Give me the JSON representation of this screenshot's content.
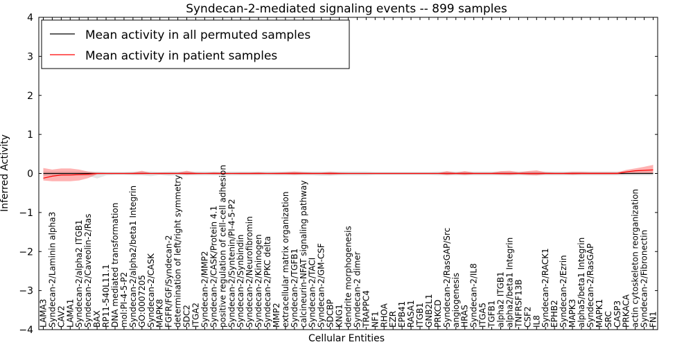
{
  "chart_data": {
    "type": "line",
    "title": "Syndecan-2-mediated signaling events -- 899 samples",
    "xlabel": "Cellular Entities",
    "ylabel": "Inferred Activity",
    "ylim": [
      -4,
      4
    ],
    "yticks": [
      "−4",
      "−3",
      "−2",
      "−1",
      "0",
      "1",
      "2",
      "3",
      "4"
    ],
    "ytick_values": [
      -4,
      -3,
      -2,
      -1,
      0,
      1,
      2,
      3,
      4
    ],
    "grid": false,
    "legend_position": "top-left",
    "categories": [
      "LAMA3",
      "Syndecan-2/Laminin alpha3",
      "CAV2",
      "LAMA1",
      "Syndecan-2/alpha2 ITGB1",
      "Syndecan-2/Caveolin-2/Ras",
      "BAX",
      "RP11-540L11.1",
      "DNA mediated transformation",
      "mol:PI-4-5-P2",
      "Syndecan-2/alpha2/beta1 Integrin",
      "GO:0007205",
      "Syndecan-2/CASK",
      "MAPK8",
      "FGFR/FGF/Syndecan-2",
      "determination of left/right symmetry",
      "SDC2",
      "ITGA2",
      "Syndecan-2/MMP2",
      "Syndecan-2/CASK/Protein 4.1",
      "positive regulation of cell-cell adhesion",
      "Syndecan-2/Syntenin/PI-4-5-P2",
      "Syndecan-2/Synbindin",
      "Syndecan-2/Neurofibromin",
      "Syndecan-2/Kininogen",
      "Syndecan-2/PKC delta",
      "MMP2",
      "extracellular matrix organization",
      "Syndecan-2/TGFB1",
      "calcineurin-NFAT signaling pathway",
      "Syndecan-2/TACI",
      "Syndecan-2/GM-CSF",
      "SDCBP",
      "KNG1",
      "dendrite morphogenesis",
      "Syndecan-2 dimer",
      "TRAPPC4",
      "NF1",
      "RHOA",
      "EZR",
      "EPB41",
      "RASA1",
      "ITGB1",
      "GNB2L1",
      "PRKCD",
      "Syndecan-2/RasGAP/Src",
      "angiogenesis",
      "HRAS",
      "Syndecan-2/IL8",
      "ITGA5",
      "TGFB1",
      "alpha2 ITGB1",
      "alpha2/beta1 Integrin",
      "TNFRSF13B",
      "CSF2",
      "IL8",
      "Syndecan-2/RACK1",
      "EPHB2",
      "Syndecan-2/Ezrin",
      "MAPK3",
      "alpha5/beta1 Integrin",
      "Syndecan-2/RasGAP",
      "MAPK1",
      "SRC",
      "CASP3",
      "PRKACA",
      "actin cytoskeleton reorganization",
      "Syndecan-2/Fibronectin",
      "FN1"
    ],
    "series": [
      {
        "name": "Mean activity in all permuted samples",
        "color": "#000000",
        "values": [
          0,
          0,
          0,
          0,
          0,
          0,
          0,
          0,
          0,
          0,
          0,
          0,
          0,
          0,
          0,
          0,
          0,
          0,
          0,
          0,
          0,
          0,
          0,
          0,
          0,
          0,
          0,
          0,
          0,
          0,
          0,
          0,
          0,
          0,
          0,
          0,
          0,
          0,
          0,
          0,
          0,
          0,
          0,
          0,
          0,
          0,
          0,
          0,
          0,
          0,
          0,
          0,
          0,
          0,
          0,
          0,
          0,
          0,
          0,
          0,
          0,
          0,
          0,
          0,
          0,
          0,
          0,
          0,
          0
        ],
        "band_lower": [
          -0.06,
          -0.05,
          -0.06,
          -0.05,
          -0.05,
          -0.06,
          -0.13,
          -0.05,
          -0.04,
          -0.04,
          -0.05,
          -0.05,
          -0.07,
          -0.04,
          -0.06,
          -0.05,
          -0.05,
          -0.05,
          -0.05,
          -0.05,
          -0.05,
          -0.05,
          -0.05,
          -0.05,
          -0.05,
          -0.05,
          -0.05,
          -0.05,
          -0.05,
          -0.05,
          -0.05,
          -0.06,
          -0.06,
          -0.05,
          -0.05,
          -0.05,
          -0.05,
          -0.04,
          -0.04,
          -0.04,
          -0.04,
          -0.04,
          -0.04,
          -0.04,
          -0.05,
          -0.05,
          -0.05,
          -0.05,
          -0.05,
          -0.05,
          -0.05,
          -0.05,
          -0.05,
          -0.05,
          -0.05,
          -0.05,
          -0.05,
          -0.05,
          -0.05,
          -0.05,
          -0.05,
          -0.05,
          -0.05,
          -0.05,
          -0.05,
          -0.05,
          -0.05,
          -0.05,
          -0.05
        ],
        "band_upper": [
          0.05,
          0.05,
          0.05,
          0.05,
          0.05,
          0.05,
          0.05,
          0.04,
          0.04,
          0.04,
          0.05,
          0.05,
          0.05,
          0.04,
          0.05,
          0.05,
          0.05,
          0.05,
          0.05,
          0.05,
          0.05,
          0.05,
          0.05,
          0.05,
          0.05,
          0.05,
          0.05,
          0.05,
          0.05,
          0.05,
          0.05,
          0.05,
          0.05,
          0.05,
          0.05,
          0.05,
          0.05,
          0.04,
          0.04,
          0.04,
          0.04,
          0.04,
          0.04,
          0.04,
          0.05,
          0.05,
          0.05,
          0.05,
          0.05,
          0.05,
          0.05,
          0.05,
          0.05,
          0.05,
          0.05,
          0.05,
          0.05,
          0.05,
          0.05,
          0.05,
          0.05,
          0.05,
          0.05,
          0.05,
          0.05,
          0.05,
          0.05,
          0.05,
          0.05
        ]
      },
      {
        "name": "Mean activity in patient samples",
        "color": "#ff0000",
        "values": [
          -0.12,
          -0.07,
          -0.04,
          -0.04,
          -0.03,
          -0.02,
          0,
          0,
          0,
          0,
          0,
          0,
          0,
          0,
          0,
          0,
          0,
          0,
          0,
          0,
          0,
          0,
          0,
          0,
          0,
          0,
          0,
          0,
          0,
          0,
          0,
          0,
          0,
          0,
          0,
          0,
          0,
          0,
          0,
          0,
          0,
          0,
          0,
          0,
          0,
          0,
          0,
          0,
          0,
          0,
          0,
          0,
          0,
          0,
          0,
          0,
          0,
          0,
          0,
          0,
          0,
          0,
          0,
          0,
          0,
          0.04,
          0.07,
          0.08,
          0.09
        ],
        "band_lower": [
          -0.18,
          -0.2,
          -0.2,
          -0.2,
          -0.18,
          -0.12,
          -0.02,
          -0.01,
          -0.01,
          -0.01,
          -0.02,
          -0.02,
          -0.01,
          -0.02,
          -0.02,
          -0.01,
          -0.03,
          -0.02,
          -0.01,
          -0.02,
          -0.02,
          -0.01,
          -0.02,
          -0.02,
          -0.02,
          -0.01,
          -0.02,
          -0.02,
          -0.03,
          -0.02,
          -0.02,
          -0.02,
          -0.03,
          -0.02,
          -0.01,
          -0.01,
          -0.01,
          -0.01,
          -0.01,
          -0.01,
          -0.01,
          -0.01,
          -0.01,
          -0.01,
          -0.01,
          -0.04,
          -0.02,
          -0.04,
          -0.02,
          -0.02,
          -0.02,
          -0.03,
          -0.04,
          -0.02,
          -0.04,
          -0.05,
          -0.02,
          -0.02,
          -0.02,
          -0.03,
          -0.02,
          -0.02,
          -0.02,
          -0.02,
          -0.02,
          -0.01,
          0.01,
          0.01,
          0.0
        ],
        "band_upper": [
          0.14,
          0.1,
          0.13,
          0.13,
          0.1,
          0.05,
          0.02,
          0.01,
          0.01,
          0.01,
          0.02,
          0.07,
          0.01,
          0.02,
          0.02,
          0.02,
          0.07,
          0.02,
          0.01,
          0.03,
          0.02,
          0.01,
          0.02,
          0.02,
          0.03,
          0.01,
          0.02,
          0.03,
          0.05,
          0.03,
          0.02,
          0.02,
          0.04,
          0.02,
          0.01,
          0.01,
          0.01,
          0.01,
          0.01,
          0.01,
          0.01,
          0.01,
          0.01,
          0.01,
          0.01,
          0.06,
          0.02,
          0.06,
          0.02,
          0.02,
          0.02,
          0.06,
          0.07,
          0.03,
          0.06,
          0.08,
          0.03,
          0.02,
          0.02,
          0.04,
          0.04,
          0.03,
          0.03,
          0.03,
          0.03,
          0.09,
          0.13,
          0.17,
          0.22
        ]
      }
    ]
  }
}
